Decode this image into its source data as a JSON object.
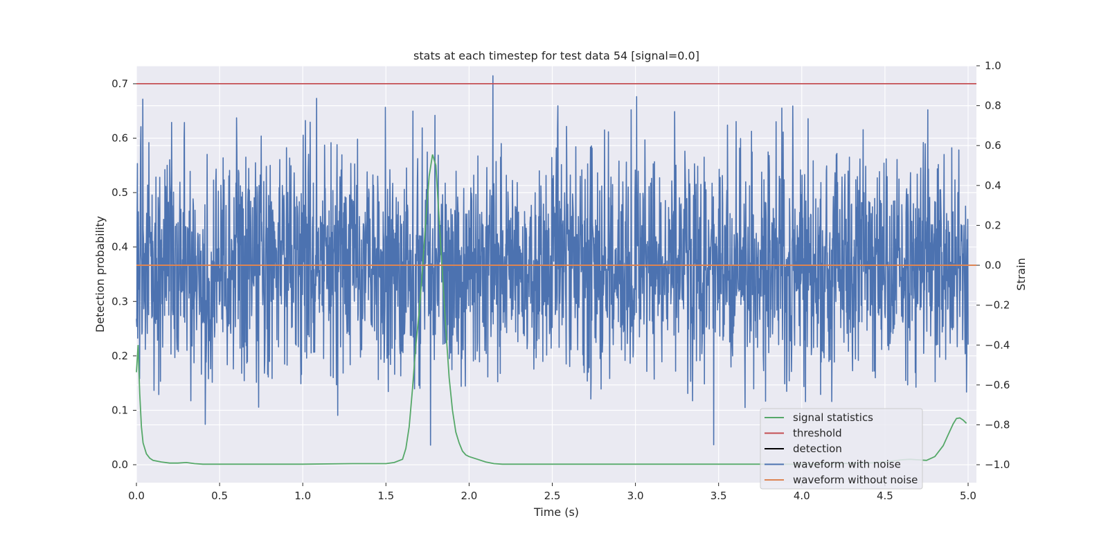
{
  "chart_data": {
    "type": "line",
    "title": "stats at each timestep for test data 54 [signal=0.0]",
    "xlabel": "Time (s)",
    "ylabel": "Detection probability",
    "y2label": "Strain",
    "xlim": [
      0.0,
      5.05
    ],
    "ylim": [
      -0.033,
      0.733
    ],
    "y2lim": [
      -1.09,
      1.0
    ],
    "x_ticks": [
      "0.0",
      "0.5",
      "1.0",
      "1.5",
      "2.0",
      "2.5",
      "3.0",
      "3.5",
      "4.0",
      "4.5",
      "5.0"
    ],
    "x_tick_values": [
      0.0,
      0.5,
      1.0,
      1.5,
      2.0,
      2.5,
      3.0,
      3.5,
      4.0,
      4.5,
      5.0
    ],
    "y_ticks": [
      "0.0",
      "0.1",
      "0.2",
      "0.3",
      "0.4",
      "0.5",
      "0.6",
      "0.7"
    ],
    "y_tick_values": [
      0.0,
      0.1,
      0.2,
      0.3,
      0.4,
      0.5,
      0.6,
      0.7
    ],
    "y2_ticks": [
      "−1.0",
      "−0.8",
      "−0.6",
      "−0.4",
      "−0.2",
      "0.0",
      "0.2",
      "0.4",
      "0.6",
      "0.8",
      "1.0"
    ],
    "y2_tick_values": [
      -1.0,
      -0.8,
      -0.6,
      -0.4,
      -0.2,
      0.0,
      0.2,
      0.4,
      0.6,
      0.8,
      1.0
    ],
    "grid": true,
    "legend_position": "bottom-right",
    "series": [
      {
        "name": "signal statistics",
        "color": "#55a868",
        "axis": "left",
        "x": [
          0.0,
          0.01,
          0.02,
          0.03,
          0.04,
          0.06,
          0.08,
          0.1,
          0.15,
          0.2,
          0.25,
          0.3,
          0.35,
          0.4,
          0.5,
          0.8,
          1.0,
          1.3,
          1.5,
          1.55,
          1.6,
          1.62,
          1.64,
          1.66,
          1.68,
          1.7,
          1.72,
          1.74,
          1.76,
          1.78,
          1.8,
          1.82,
          1.84,
          1.86,
          1.88,
          1.9,
          1.92,
          1.94,
          1.96,
          1.98,
          2.0,
          2.05,
          2.1,
          2.15,
          2.2,
          2.3,
          2.5,
          3.0,
          3.5,
          4.0,
          4.2,
          4.4,
          4.5,
          4.6,
          4.65,
          4.7,
          4.75,
          4.8,
          4.85,
          4.88,
          4.91,
          4.93,
          4.95,
          4.97,
          4.99
        ],
        "values": [
          0.17,
          0.22,
          0.13,
          0.07,
          0.04,
          0.02,
          0.012,
          0.008,
          0.005,
          0.003,
          0.003,
          0.004,
          0.002,
          0.001,
          0.001,
          0.001,
          0.001,
          0.002,
          0.002,
          0.004,
          0.01,
          0.03,
          0.07,
          0.14,
          0.22,
          0.28,
          0.36,
          0.45,
          0.53,
          0.57,
          0.55,
          0.45,
          0.35,
          0.25,
          0.16,
          0.1,
          0.06,
          0.04,
          0.025,
          0.018,
          0.015,
          0.01,
          0.005,
          0.002,
          0.001,
          0.001,
          0.001,
          0.001,
          0.001,
          0.001,
          0.002,
          0.003,
          0.005,
          0.009,
          0.01,
          0.009,
          0.008,
          0.015,
          0.035,
          0.055,
          0.075,
          0.085,
          0.086,
          0.082,
          0.076
        ]
      },
      {
        "name": "threshold",
        "color": "#c44e52",
        "axis": "left",
        "x": [
          0.0,
          5.05
        ],
        "values": [
          0.7,
          0.7
        ]
      },
      {
        "name": "detection",
        "color": "#000000",
        "axis": "left",
        "x": [],
        "values": []
      },
      {
        "name": "waveform with noise",
        "color": "#4c72b0",
        "axis": "right",
        "description": "dense noise, roughly within -0.95 to 0.95 strain"
      },
      {
        "name": "waveform without noise",
        "color": "#dd8452",
        "axis": "right",
        "x": [
          0.0,
          5.05
        ],
        "values": [
          0.0,
          0.0
        ]
      }
    ],
    "legend": [
      "signal statistics",
      "threshold",
      "detection",
      "waveform with noise",
      "waveform without noise"
    ],
    "background": "#eaeaf2",
    "grid_color": "#ffffff"
  }
}
